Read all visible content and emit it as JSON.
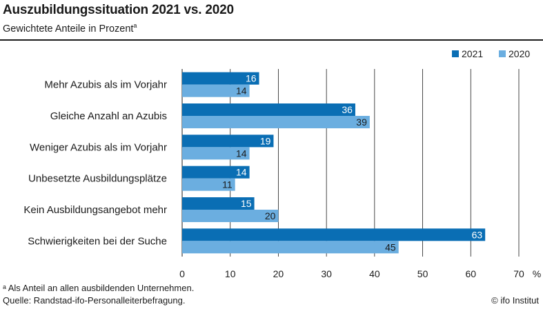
{
  "header": {
    "title": "Auszubildungssituation 2021 vs. 2020",
    "subtitle": "Gewichtete Anteile in Prozent",
    "subtitle_marker": "a"
  },
  "footer": {
    "footnote": "ᵃ Als Anteil an allen ausbildenden Unternehmen.",
    "source": "Quelle: Randstad-ifo-Personalleiterbefragung.",
    "credit": "© ifo Institut"
  },
  "chart_data": {
    "type": "bar",
    "orientation": "horizontal",
    "categories": [
      "Mehr Azubis als im Vorjahr",
      "Gleiche Anzahl an Azubis",
      "Weniger Azubis als im Vorjahr",
      "Unbesetzte Ausbildungsplätze",
      "Kein Ausbildungsangebot mehr",
      "Schwierigkeiten bei der Suche"
    ],
    "series": [
      {
        "name": "2021",
        "color": "#0a6eb4",
        "values": [
          16,
          36,
          19,
          14,
          15,
          63
        ]
      },
      {
        "name": "2020",
        "color": "#6baee0",
        "values": [
          14,
          39,
          14,
          11,
          20,
          45
        ]
      }
    ],
    "xlim": [
      0,
      70
    ],
    "xticks": [
      0,
      10,
      20,
      30,
      40,
      50,
      60,
      70
    ],
    "x_unit": "%",
    "grid": true,
    "legend_position": "top-right"
  }
}
